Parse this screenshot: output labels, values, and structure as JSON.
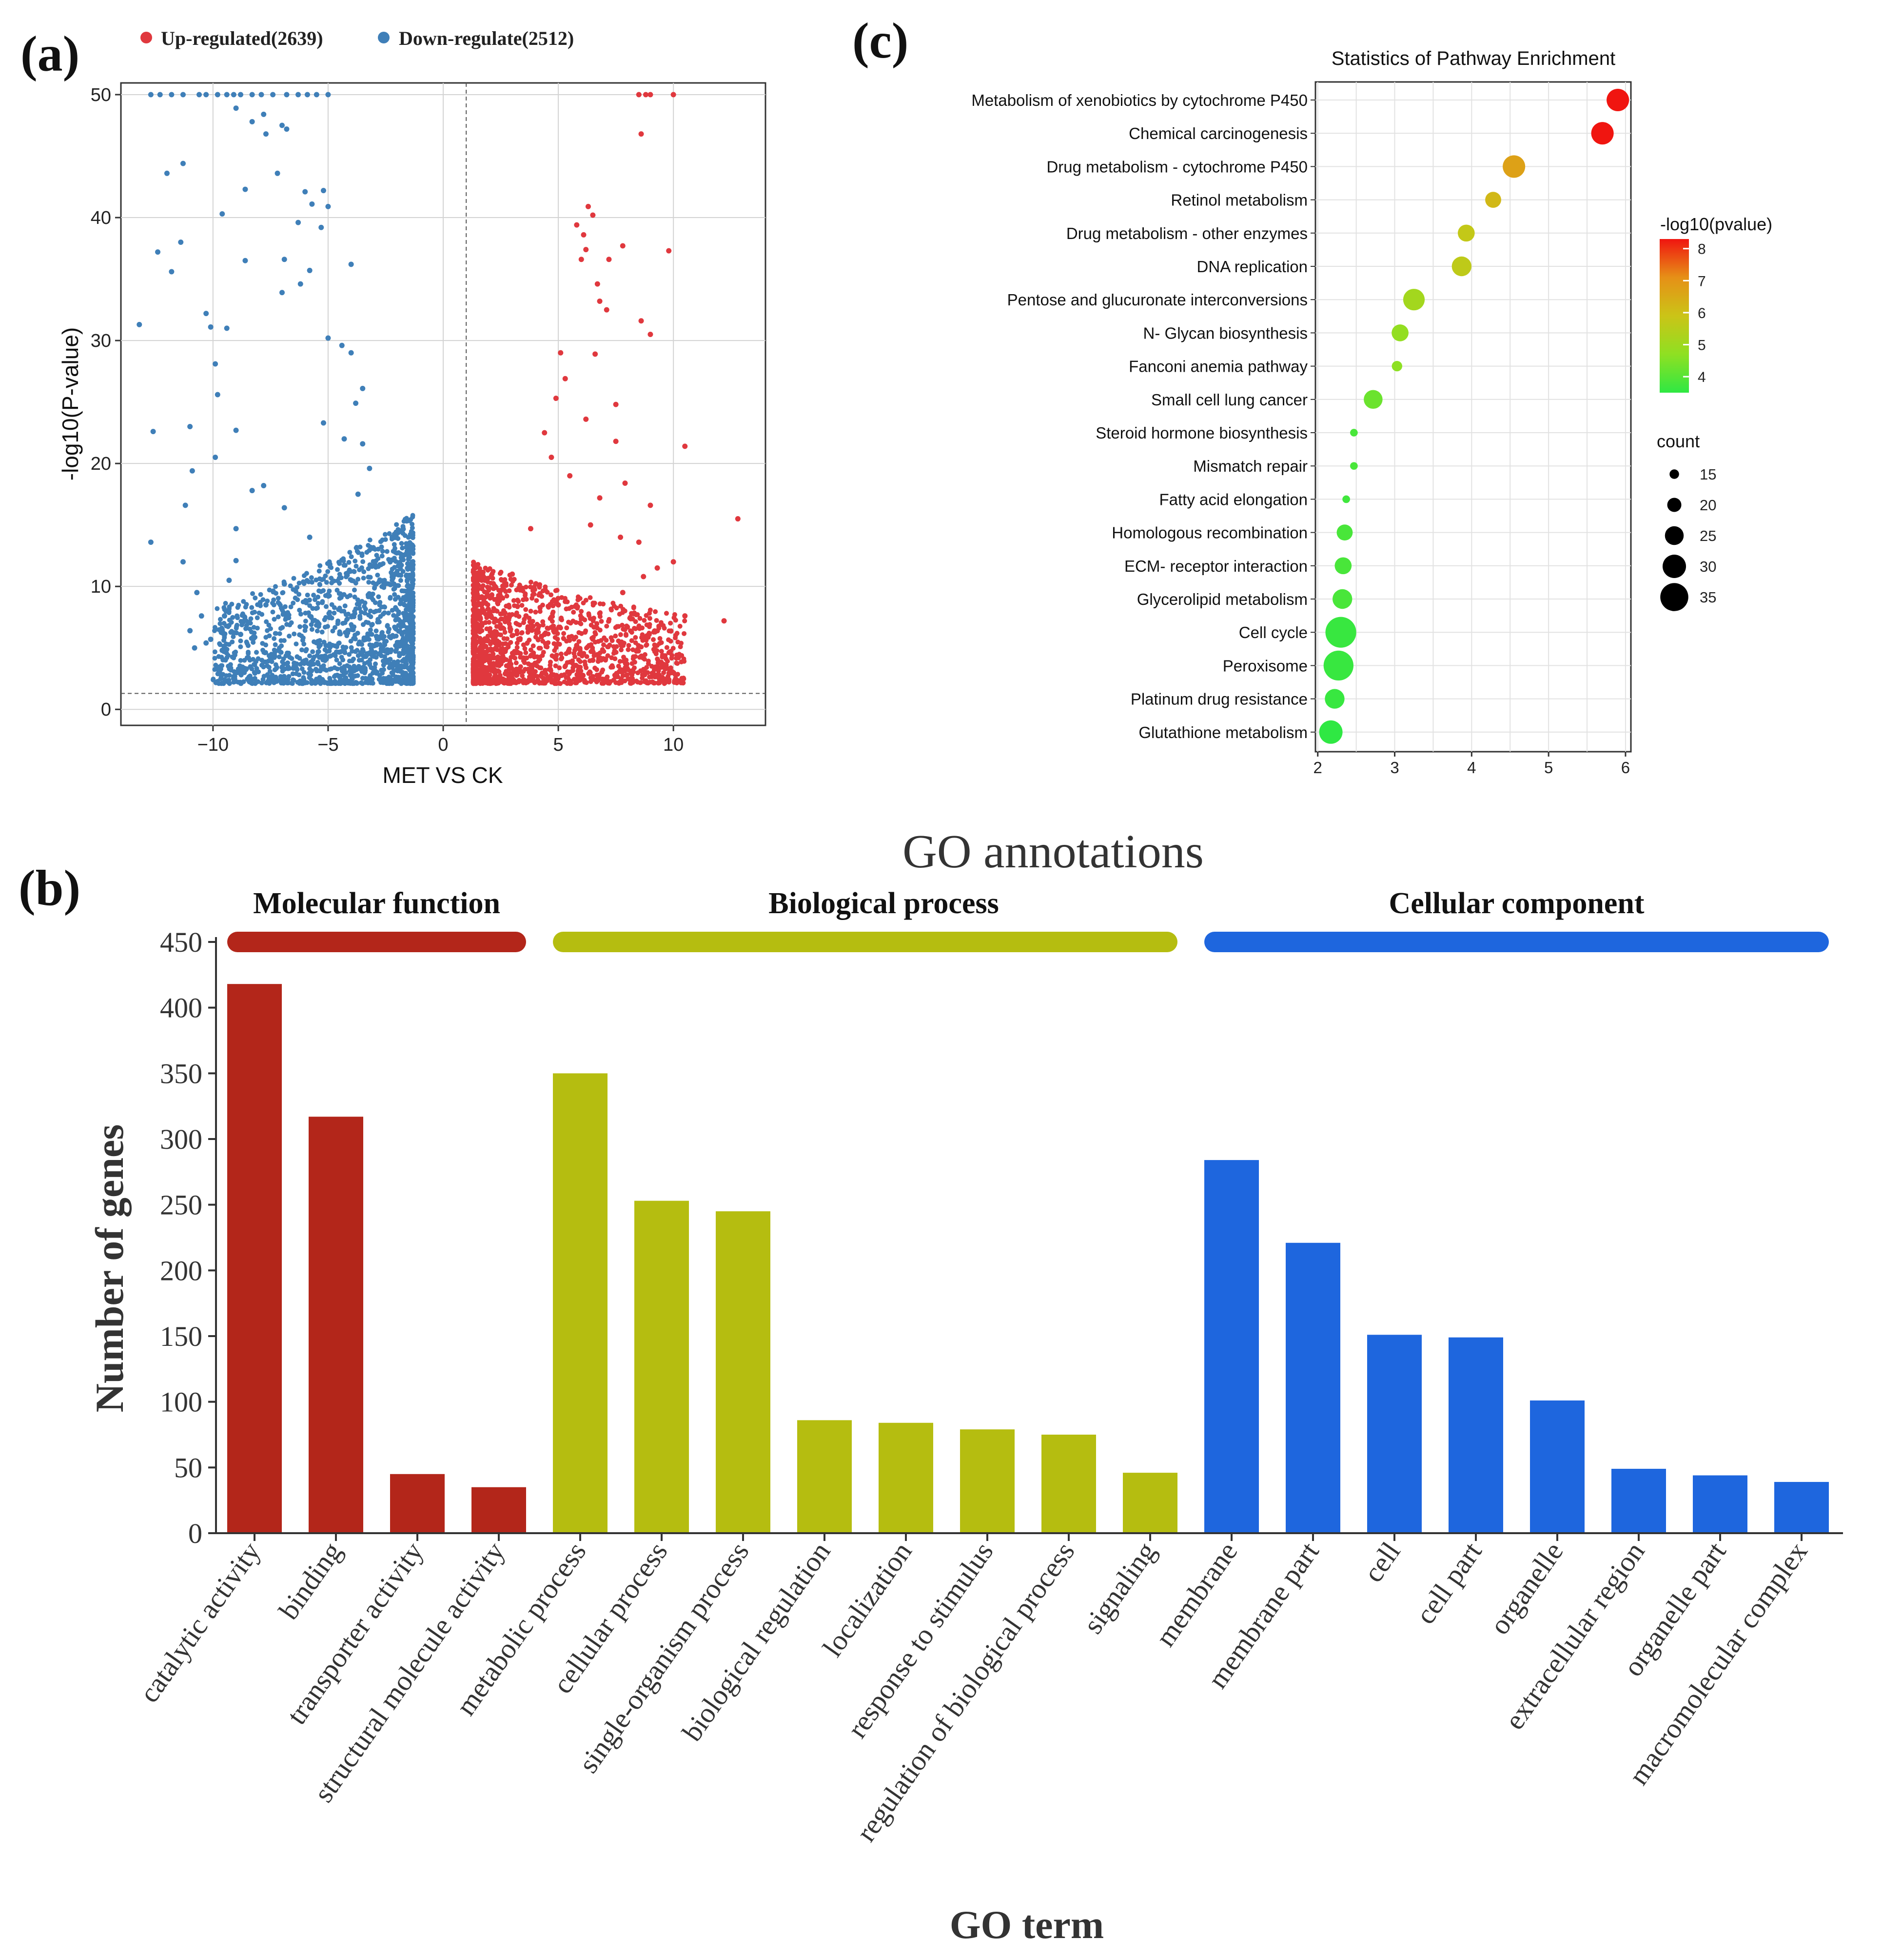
{
  "colors": {
    "up": "#e0383e",
    "down": "#3f7fb8",
    "mf": "#b3261a",
    "bp": "#b5bd10",
    "cc": "#1e66de",
    "grid": "#d3d3d3",
    "frame": "#333333"
  },
  "panels": {
    "a": {
      "label": "(a)"
    },
    "b": {
      "label": "(b)"
    },
    "c": {
      "label": "(c)"
    }
  },
  "chart_data": [
    {
      "id": "volcano",
      "type": "scatter",
      "title": "",
      "xlabel": "MET VS CK",
      "ylabel": "-log10(P-value)",
      "xlim": [
        -14,
        14
      ],
      "ylim": [
        0,
        50
      ],
      "xticks": [
        -10,
        -5,
        0,
        5,
        10
      ],
      "yticks": [
        0,
        10,
        20,
        30,
        40,
        50
      ],
      "thresholds": {
        "x_vertical": [
          1
        ],
        "y_horizontal": 1.3
      },
      "legend": [
        {
          "name": "Up-regulated(2639)",
          "color": "#e0383e"
        },
        {
          "name": "Down-regulate(2512)",
          "color": "#3f7fb8"
        }
      ],
      "series": [
        {
          "name": "Up-regulated",
          "count": 2639,
          "points": [
            [
              8.5,
              50
            ],
            [
              8.8,
              50
            ],
            [
              9.0,
              50
            ],
            [
              10.0,
              50
            ],
            [
              8.6,
              46.8
            ],
            [
              6.3,
              40.9
            ],
            [
              6.5,
              40.2
            ],
            [
              5.8,
              39.4
            ],
            [
              6.1,
              38.6
            ],
            [
              7.8,
              37.7
            ],
            [
              6.2,
              37.4
            ],
            [
              9.8,
              37.3
            ],
            [
              6.0,
              36.6
            ],
            [
              7.2,
              36.6
            ],
            [
              6.7,
              34.6
            ],
            [
              6.8,
              33.2
            ],
            [
              7.1,
              32.5
            ],
            [
              8.6,
              31.6
            ],
            [
              9.0,
              30.5
            ],
            [
              5.1,
              29.0
            ],
            [
              6.6,
              28.9
            ],
            [
              5.3,
              26.9
            ],
            [
              4.9,
              25.3
            ],
            [
              7.5,
              24.8
            ],
            [
              6.2,
              23.6
            ],
            [
              4.4,
              22.5
            ],
            [
              7.5,
              21.8
            ],
            [
              10.5,
              21.4
            ],
            [
              4.7,
              20.5
            ],
            [
              5.5,
              19.0
            ],
            [
              7.9,
              18.4
            ],
            [
              6.8,
              17.2
            ],
            [
              9.0,
              16.6
            ],
            [
              12.8,
              15.5
            ],
            [
              6.4,
              15.0
            ],
            [
              3.8,
              14.7
            ],
            [
              7.7,
              14.0
            ],
            [
              8.5,
              13.6
            ],
            [
              10.0,
              12.0
            ],
            [
              9.3,
              11.5
            ],
            [
              8.7,
              10.8
            ],
            [
              7.8,
              9.5
            ],
            [
              10.5,
              7.6
            ],
            [
              12.2,
              7.2
            ],
            [
              6.8,
              7.8
            ],
            [
              8.0,
              6.7
            ],
            [
              3.0,
              11.0
            ],
            [
              4.2,
              9.4
            ],
            [
              5.0,
              8.5
            ],
            [
              3.6,
              7.6
            ],
            [
              2.5,
              6.6
            ],
            [
              4.4,
              6.1
            ],
            [
              5.8,
              5.2
            ],
            [
              3.1,
              4.7
            ],
            [
              2.2,
              4.2
            ],
            [
              6.5,
              4.0
            ],
            [
              3.9,
              3.6
            ],
            [
              1.9,
              3.1
            ],
            [
              2.7,
              2.9
            ],
            [
              4.8,
              2.8
            ],
            [
              1.6,
              2.6
            ],
            [
              3.5,
              2.4
            ],
            [
              2.1,
              2.3
            ]
          ],
          "cluster": {
            "x_range": [
              1.3,
              10.5
            ],
            "y_range": [
              2.0,
              12.0
            ],
            "density_decays_with_x": true
          }
        },
        {
          "name": "Down-regulate",
          "count": 2512,
          "points": [
            [
              -12.7,
              50
            ],
            [
              -12.3,
              50
            ],
            [
              -11.8,
              50
            ],
            [
              -11.3,
              50
            ],
            [
              -10.6,
              50
            ],
            [
              -10.3,
              50
            ],
            [
              -9.8,
              50
            ],
            [
              -9.4,
              50
            ],
            [
              -9.1,
              50
            ],
            [
              -8.8,
              50
            ],
            [
              -8.3,
              50
            ],
            [
              -7.9,
              50
            ],
            [
              -7.4,
              50
            ],
            [
              -6.8,
              50
            ],
            [
              -6.3,
              50
            ],
            [
              -5.9,
              50
            ],
            [
              -5.5,
              50
            ],
            [
              -5.0,
              50
            ],
            [
              -9.0,
              48.9
            ],
            [
              -7.8,
              48.4
            ],
            [
              -8.3,
              47.8
            ],
            [
              -7.7,
              46.8
            ],
            [
              -7.0,
              47.5
            ],
            [
              -6.8,
              47.2
            ],
            [
              -11.3,
              44.4
            ],
            [
              -12.0,
              43.6
            ],
            [
              -7.2,
              43.6
            ],
            [
              -8.6,
              42.3
            ],
            [
              -6.0,
              42.1
            ],
            [
              -5.2,
              42.2
            ],
            [
              -5.7,
              41.1
            ],
            [
              -5.0,
              40.9
            ],
            [
              -9.6,
              40.3
            ],
            [
              -6.3,
              39.6
            ],
            [
              -5.3,
              39.2
            ],
            [
              -11.4,
              38.0
            ],
            [
              -12.4,
              37.2
            ],
            [
              -6.9,
              36.6
            ],
            [
              -8.6,
              36.5
            ],
            [
              -4.0,
              36.2
            ],
            [
              -11.8,
              35.6
            ],
            [
              -5.8,
              35.7
            ],
            [
              -6.2,
              34.6
            ],
            [
              -7.0,
              33.9
            ],
            [
              -10.3,
              32.2
            ],
            [
              -13.2,
              31.3
            ],
            [
              -10.1,
              31.1
            ],
            [
              -9.4,
              31.0
            ],
            [
              -5.0,
              30.2
            ],
            [
              -4.4,
              29.6
            ],
            [
              -4.0,
              29.0
            ],
            [
              -9.9,
              28.1
            ],
            [
              -3.5,
              26.1
            ],
            [
              -9.8,
              25.6
            ],
            [
              -3.8,
              24.9
            ],
            [
              -5.2,
              23.3
            ],
            [
              -11.0,
              23.0
            ],
            [
              -12.6,
              22.6
            ],
            [
              -9.0,
              22.7
            ],
            [
              -4.3,
              22.0
            ],
            [
              -3.5,
              21.6
            ],
            [
              -9.9,
              20.5
            ],
            [
              -3.2,
              19.6
            ],
            [
              -10.9,
              19.4
            ],
            [
              -7.8,
              18.2
            ],
            [
              -8.3,
              17.8
            ],
            [
              -6.9,
              16.4
            ],
            [
              -11.2,
              16.6
            ],
            [
              -3.7,
              17.5
            ],
            [
              -12.7,
              13.6
            ],
            [
              -9.0,
              14.7
            ],
            [
              -5.8,
              14.0
            ],
            [
              -3.1,
              13.1
            ],
            [
              -9.0,
              12.1
            ],
            [
              -11.3,
              12.0
            ],
            [
              -9.3,
              10.5
            ],
            [
              -6.9,
              10.2
            ],
            [
              -10.7,
              9.5
            ],
            [
              -7.7,
              8.5
            ],
            [
              -10.5,
              7.6
            ],
            [
              -9.5,
              7.6
            ],
            [
              -11.0,
              6.4
            ],
            [
              -10.1,
              5.7
            ],
            [
              -8.8,
              6.1
            ],
            [
              -10.8,
              5.0
            ],
            [
              -9.6,
              4.8
            ],
            [
              -10.3,
              5.4
            ]
          ],
          "cluster": {
            "x_range": [
              -10.0,
              -1.3
            ],
            "y_range": [
              2.0,
              16.0
            ],
            "density_decays_with_abs_x": true
          }
        }
      ]
    },
    {
      "id": "go-annotations",
      "type": "bar",
      "title": "GO annotations",
      "xlabel": "GO term",
      "ylabel": "Number of genes",
      "ylim": [
        0,
        450
      ],
      "yticks": [
        0,
        50,
        100,
        150,
        200,
        250,
        300,
        350,
        400,
        450
      ],
      "groups": [
        {
          "name": "Molecular function",
          "color": "#b3261a",
          "start": 0,
          "end": 3
        },
        {
          "name": "Biological process",
          "color": "#b5bd10",
          "start": 4,
          "end": 11
        },
        {
          "name": "Cellular component",
          "color": "#1e66de",
          "start": 12,
          "end": 19
        }
      ],
      "categories": [
        "catalytic activity",
        "binding",
        "transporter activity",
        "structural molecule activity",
        "metabolic process",
        "cellular process",
        "single-organism process",
        "biological regulation",
        "localization",
        "response to stimulus",
        "regulation of biological process",
        "signaling",
        "membrane",
        "membrane part",
        "cell",
        "cell part",
        "organelle",
        "extracellular region",
        "organelle part",
        "macromolecular complex"
      ],
      "values": [
        418,
        317,
        45,
        35,
        350,
        253,
        245,
        86,
        84,
        79,
        75,
        46,
        284,
        221,
        151,
        149,
        101,
        49,
        44,
        39
      ]
    },
    {
      "id": "kegg-enrichment",
      "type": "scatter",
      "title": "Statistics of Pathway Enrichment",
      "xlabel": "",
      "ylabel": "",
      "xlim": [
        1.97,
        6.07
      ],
      "xticks": [
        2,
        3,
        4,
        5,
        6
      ],
      "colorbar": {
        "title": "-log10(pvalue)",
        "ticks": [
          4,
          5,
          6,
          7,
          8
        ],
        "range": [
          3.5,
          8
        ]
      },
      "size_legend": {
        "title": "count",
        "values": [
          15,
          20,
          25,
          30,
          35
        ]
      },
      "pathways": [
        "Metabolism of xenobiotics by cytochrome P450",
        "Chemical carcinogenesis",
        "Drug metabolism -  cytochrome P450",
        "Retinol metabolism",
        "Drug metabolism -  other enzymes",
        "DNA replication",
        "Pentose and glucuronate interconversions",
        "N- Glycan biosynthesis",
        "Fanconi anemia pathway",
        "Small cell lung cancer",
        "Steroid hormone biosynthesis",
        "Mismatch repair",
        "Fatty acid elongation",
        "Homologous recombination",
        "ECM- receptor interaction",
        "Glycerolipid metabolism",
        "Cell cycle",
        "Peroxisome",
        "Platinum drug resistance",
        "Glutathione metabolism"
      ],
      "x": [
        5.9,
        5.7,
        4.55,
        4.28,
        3.93,
        3.87,
        3.25,
        3.07,
        3.03,
        2.72,
        2.47,
        2.47,
        2.37,
        2.35,
        2.33,
        2.32,
        2.3,
        2.27,
        2.22,
        2.17
      ],
      "count": [
        29,
        29,
        29,
        22,
        23,
        26,
        28,
        23,
        16,
        25,
        13,
        13,
        13,
        22,
        23,
        26,
        38,
        37,
        26,
        30
      ],
      "neglog10p": [
        8.0,
        8.0,
        6.5,
        6.0,
        5.6,
        5.5,
        5.0,
        4.7,
        4.6,
        4.2,
        3.8,
        3.8,
        3.7,
        3.8,
        3.8,
        3.8,
        3.6,
        3.6,
        3.6,
        3.5
      ]
    }
  ]
}
